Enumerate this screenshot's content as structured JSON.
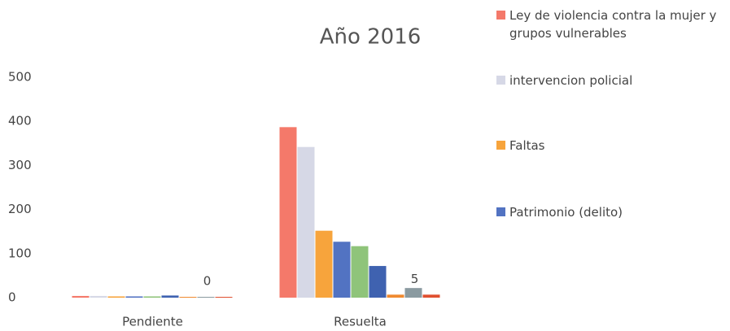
{
  "chart_data": {
    "type": "bar",
    "title": "Año 2016",
    "categories": [
      "Pendiente",
      "Resuelta"
    ],
    "series": [
      {
        "name": "Ley de violencia contra la mujer y grupos vulnerables",
        "color": "#f4796a",
        "values": [
          2,
          385
        ]
      },
      {
        "name": "intervencion policial",
        "color": "#d6d8e6",
        "values": [
          2,
          340
        ]
      },
      {
        "name": "Faltas",
        "color": "#f7a43c",
        "values": [
          1,
          150
        ]
      },
      {
        "name": "Patrimonio (delito)",
        "color": "#5273c2",
        "values": [
          1,
          125
        ]
      },
      {
        "color": "#8fc47a",
        "values": [
          1,
          115
        ]
      },
      {
        "color": "#3f62b0",
        "values": [
          3,
          70
        ]
      },
      {
        "color": "#f08a30",
        "values": [
          0,
          5
        ]
      },
      {
        "color": "#8a9aa0",
        "values": [
          0,
          20
        ]
      },
      {
        "color": "#e05030",
        "values": [
          0,
          5
        ],
        "data_labels": true
      }
    ],
    "ylim": [
      0,
      500
    ],
    "yticks": [
      0,
      100,
      200,
      300,
      400,
      500
    ],
    "grid": false,
    "legend": "right"
  }
}
